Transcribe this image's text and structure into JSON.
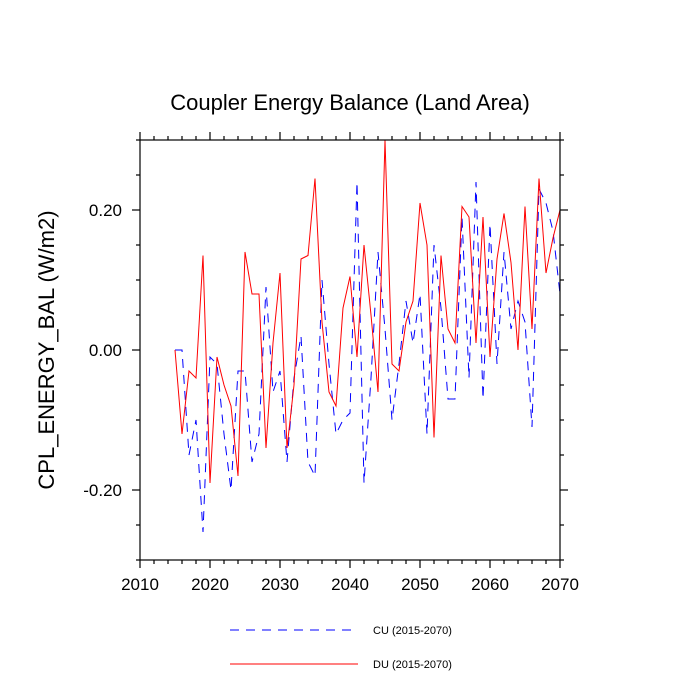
{
  "chart_data": {
    "type": "line",
    "title": "Coupler Energy Balance (Land Area)",
    "xlabel": "",
    "ylabel": "CPL_ENERGY_BAL  (W/m2)",
    "xlim": [
      2010,
      2070
    ],
    "ylim": [
      -0.3,
      0.3
    ],
    "xticks": [
      2010,
      2020,
      2030,
      2040,
      2050,
      2060,
      2070
    ],
    "xtick_labels": [
      "2010",
      "2020",
      "2030",
      "2040",
      "2050",
      "2060",
      "2070"
    ],
    "yticks": [
      -0.2,
      0.0,
      0.2
    ],
    "ytick_labels": [
      "-0.20",
      "0.00",
      "0.20"
    ],
    "x": [
      2015,
      2016,
      2017,
      2018,
      2019,
      2020,
      2021,
      2022,
      2023,
      2024,
      2025,
      2026,
      2027,
      2028,
      2029,
      2030,
      2031,
      2032,
      2033,
      2034,
      2035,
      2036,
      2037,
      2038,
      2039,
      2040,
      2041,
      2042,
      2043,
      2044,
      2045,
      2046,
      2047,
      2048,
      2049,
      2050,
      2051,
      2052,
      2053,
      2054,
      2055,
      2056,
      2057,
      2058,
      2059,
      2060,
      2061,
      2062,
      2063,
      2064,
      2065,
      2066,
      2067,
      2068,
      2069,
      2070
    ],
    "series": [
      {
        "name": "CU (2015-2070)",
        "color": "#0000ff",
        "dash": "dashed",
        "values": [
          0.0,
          0.0,
          -0.15,
          -0.1,
          -0.26,
          -0.01,
          -0.02,
          -0.12,
          -0.2,
          -0.03,
          -0.03,
          -0.16,
          -0.12,
          0.09,
          -0.06,
          -0.03,
          -0.16,
          -0.04,
          0.02,
          -0.16,
          -0.18,
          0.1,
          -0.02,
          -0.12,
          -0.1,
          -0.09,
          0.24,
          -0.19,
          -0.04,
          0.14,
          0.03,
          -0.1,
          -0.02,
          0.07,
          0.01,
          0.08,
          -0.12,
          0.15,
          0.06,
          -0.07,
          -0.07,
          0.19,
          -0.04,
          0.24,
          -0.07,
          0.18,
          -0.02,
          0.14,
          0.03,
          0.07,
          0.04,
          -0.11,
          0.23,
          0.21,
          0.17,
          0.08
        ]
      },
      {
        "name": "DU (2015-2070)",
        "color": "#ff0000",
        "dash": "solid",
        "values": [
          0.0,
          -0.12,
          -0.03,
          -0.04,
          0.135,
          -0.19,
          -0.01,
          -0.05,
          -0.08,
          -0.18,
          0.14,
          0.08,
          0.08,
          -0.14,
          0.01,
          0.11,
          -0.14,
          -0.05,
          0.13,
          0.135,
          0.245,
          0.04,
          -0.06,
          -0.08,
          0.06,
          0.105,
          -0.01,
          0.15,
          0.05,
          -0.06,
          0.3,
          -0.02,
          -0.03,
          0.04,
          0.07,
          0.21,
          0.15,
          -0.125,
          0.135,
          0.03,
          0.01,
          0.205,
          0.19,
          0.01,
          0.19,
          -0.01,
          0.13,
          0.195,
          0.125,
          0.0,
          0.205,
          0.03,
          0.245,
          0.11,
          0.16,
          0.2
        ]
      }
    ],
    "legend": [
      {
        "label": "CU (2015-2070)"
      },
      {
        "label": "DU (2015-2070)"
      }
    ],
    "legend_position": "bottom"
  }
}
